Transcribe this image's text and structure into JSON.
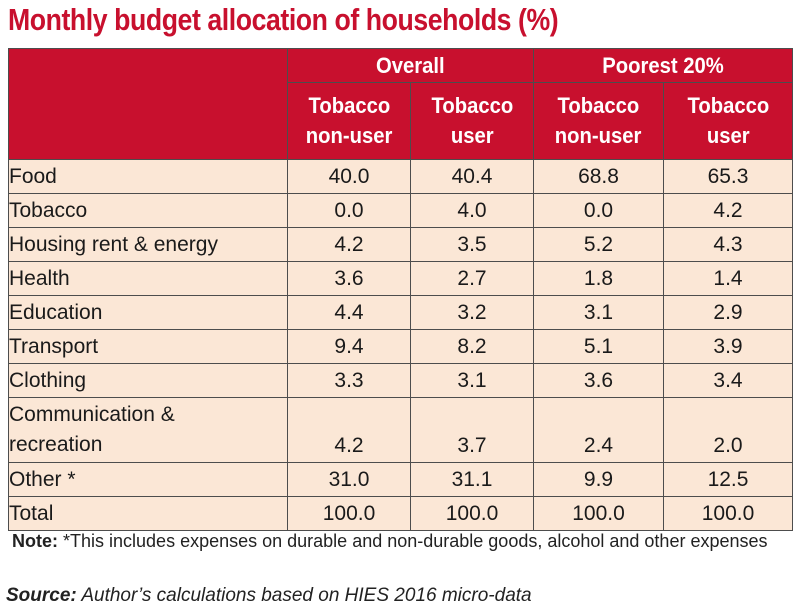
{
  "chart_data": {
    "type": "table",
    "title": "Monthly budget allocation of households (%)",
    "groups": [
      "Overall",
      "Poorest 20%"
    ],
    "columns": [
      {
        "group": "Overall",
        "line1": "Tobacco",
        "line2": "non-user"
      },
      {
        "group": "Overall",
        "line1": "Tobacco",
        "line2": "user"
      },
      {
        "group": "Poorest 20%",
        "line1": "Tobacco",
        "line2": "non-user"
      },
      {
        "group": "Poorest 20%",
        "line1": "Tobacco",
        "line2": "user"
      }
    ],
    "rows": [
      {
        "label": "Food",
        "values": [
          "40.0",
          "40.4",
          "68.8",
          "65.3"
        ]
      },
      {
        "label": "Tobacco",
        "values": [
          "0.0",
          "4.0",
          "0.0",
          "4.2"
        ]
      },
      {
        "label": "Housing rent & energy",
        "values": [
          "4.2",
          "3.5",
          "5.2",
          "4.3"
        ]
      },
      {
        "label": "Health",
        "values": [
          "3.6",
          "2.7",
          "1.8",
          "1.4"
        ]
      },
      {
        "label": "Education",
        "values": [
          "4.4",
          "3.2",
          "3.1",
          "2.9"
        ]
      },
      {
        "label": "Transport",
        "values": [
          "9.4",
          "8.2",
          "5.1",
          "3.9"
        ]
      },
      {
        "label": "Clothing",
        "values": [
          "3.3",
          "3.1",
          "3.6",
          "3.4"
        ]
      },
      {
        "label": "Communication & recreation",
        "label_line1": "Communication &",
        "label_line2": "recreation",
        "values": [
          "4.2",
          "3.7",
          "2.4",
          "2.0"
        ]
      },
      {
        "label": "Other *",
        "values": [
          "31.0",
          "31.1",
          "9.9",
          "12.5"
        ]
      },
      {
        "label": "Total",
        "values": [
          "100.0",
          "100.0",
          "100.0",
          "100.0"
        ]
      }
    ]
  },
  "note": {
    "prefix": "Note:",
    "text": "*This includes expenses on durable and non-durable goods, alcohol and other expenses"
  },
  "source": {
    "prefix": "Source:",
    "text": "Author’s calculations based on HIES 2016 micro-data"
  },
  "colors": {
    "header_red": "#c8102e",
    "body_bg": "#fbe7d6",
    "border": "#4d4d4d"
  }
}
